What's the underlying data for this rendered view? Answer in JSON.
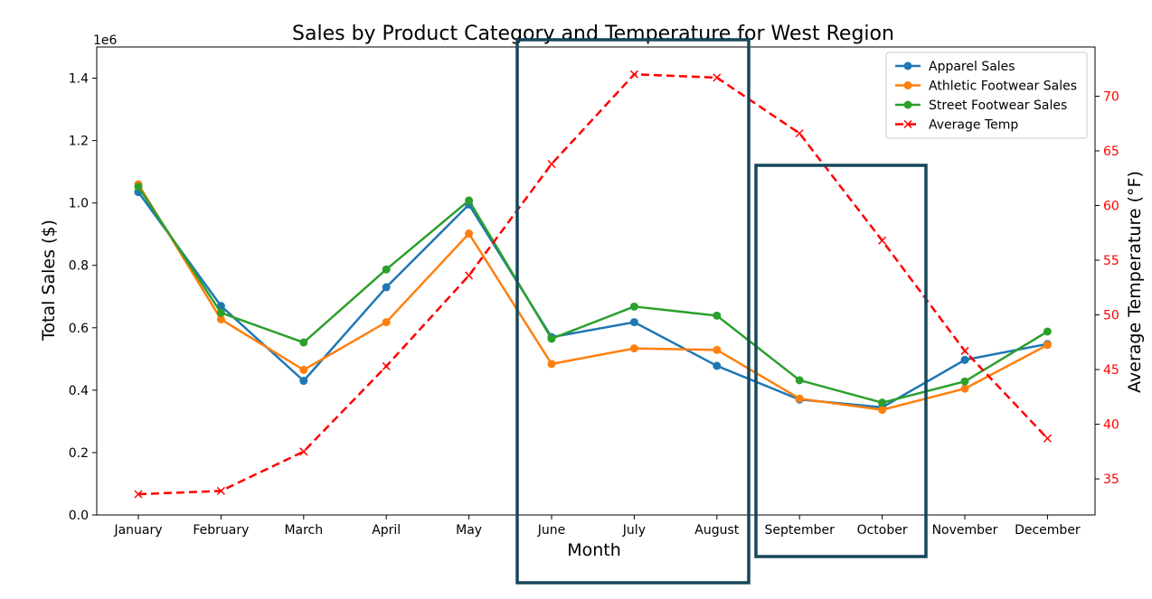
{
  "chart_data": {
    "type": "line",
    "title": "Sales by Product Category and Temperature for West Region",
    "xlabel": "Month",
    "ylabel": "Total Sales ($)",
    "y_offset_label": "1e6",
    "y2label": "Average Temperature (°F)",
    "categories": [
      "January",
      "February",
      "March",
      "April",
      "May",
      "June",
      "July",
      "August",
      "September",
      "October",
      "November",
      "December"
    ],
    "ylim": [
      0,
      1.5
    ],
    "y_ticks": [
      0.0,
      0.2,
      0.4,
      0.6,
      0.8,
      1.0,
      1.2,
      1.4
    ],
    "y_tick_labels": [
      "0.0",
      "0.2",
      "0.4",
      "0.6",
      "0.8",
      "1.0",
      "1.2",
      "1.4"
    ],
    "y2lim": [
      31.7,
      74.5
    ],
    "y2_ticks": [
      35,
      40,
      45,
      50,
      55,
      60,
      65,
      70
    ],
    "y2_tick_labels": [
      "35",
      "40",
      "45",
      "50",
      "55",
      "60",
      "65",
      "70"
    ],
    "grid": false,
    "legend_position": "top-right",
    "series": [
      {
        "name": "Apparel Sales",
        "axis": "left",
        "color": "#1f77b4",
        "marker": "circle",
        "values": [
          1.035,
          0.67,
          0.43,
          0.73,
          0.995,
          0.57,
          0.618,
          0.478,
          0.37,
          0.345,
          0.497,
          0.548
        ]
      },
      {
        "name": "Athletic Footwear Sales",
        "axis": "left",
        "color": "#ff7f0e",
        "marker": "circle",
        "values": [
          1.06,
          0.627,
          0.465,
          0.618,
          0.902,
          0.484,
          0.534,
          0.529,
          0.373,
          0.337,
          0.405,
          0.545
        ]
      },
      {
        "name": "Street Footwear Sales",
        "axis": "left",
        "color": "#2ca02c",
        "marker": "circle",
        "values": [
          1.052,
          0.648,
          0.553,
          0.787,
          1.008,
          0.565,
          0.668,
          0.639,
          0.432,
          0.36,
          0.428,
          0.588
        ]
      },
      {
        "name": "Average Temp",
        "axis": "right",
        "color": "#ff0000",
        "marker": "x",
        "dashed": true,
        "values": [
          33.6,
          33.9,
          37.5,
          45.3,
          53.6,
          63.8,
          72.0,
          71.7,
          66.6,
          56.8,
          46.7,
          38.7
        ]
      }
    ],
    "annotations": [
      {
        "type": "rectangle",
        "from": "June",
        "to": "August",
        "color": "#16475a"
      },
      {
        "type": "rectangle",
        "from": "September",
        "to": "October",
        "color": "#16475a"
      }
    ]
  }
}
